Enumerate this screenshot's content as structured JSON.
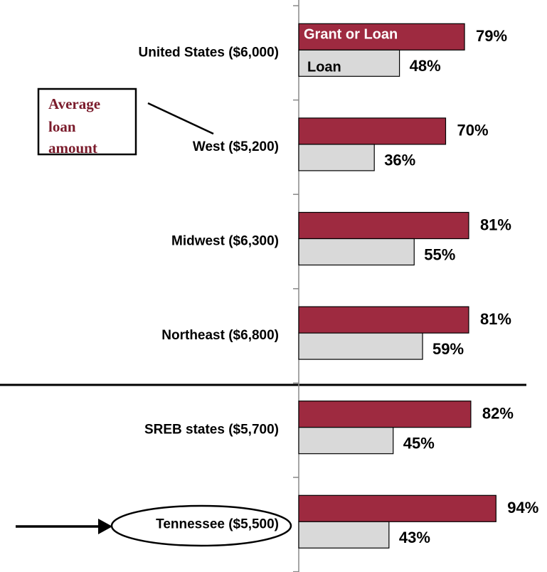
{
  "chart_data": {
    "type": "bar",
    "orientation": "horizontal",
    "categories": [
      "United States ($6,000)",
      "West ($5,200)",
      "Midwest ($6,300)",
      "Northeast ($6,800)",
      "SREB states ($5,700)",
      "Tennessee ($5,500)"
    ],
    "series": [
      {
        "name": "Grant or Loan",
        "color": "#9e2a40",
        "values": [
          79,
          70,
          81,
          81,
          82,
          94
        ],
        "value_labels": [
          "79%",
          "70%",
          "81%",
          "81%",
          "82%",
          "94%"
        ]
      },
      {
        "name": "Loan",
        "color": "#d9d9d9",
        "values": [
          48,
          36,
          55,
          59,
          45,
          43
        ],
        "value_labels": [
          "48%",
          "36%",
          "55%",
          "59%",
          "45%",
          "43%"
        ]
      }
    ],
    "xlim": [
      0,
      100
    ],
    "annotation": [
      "Average",
      "loan",
      "amount"
    ]
  }
}
